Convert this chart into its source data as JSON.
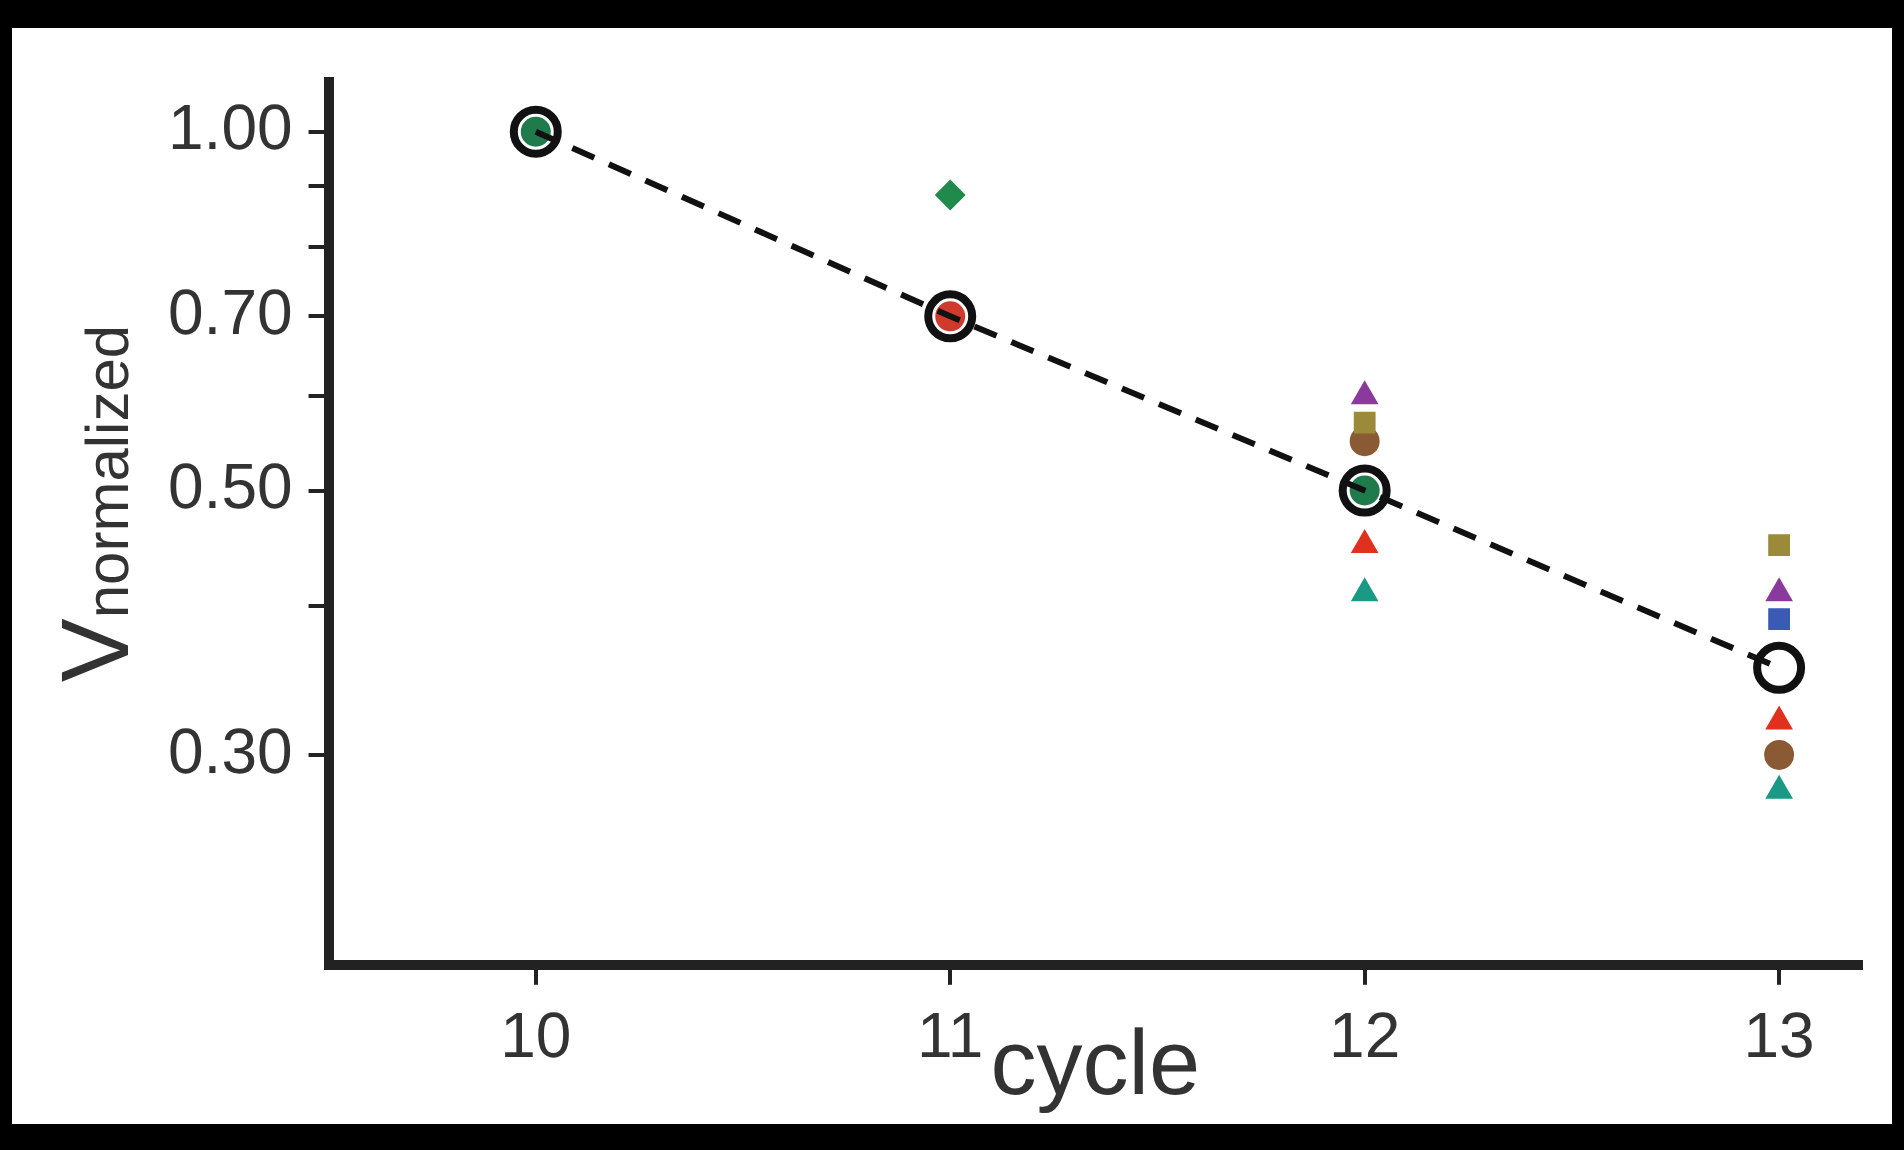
{
  "chart_data": {
    "type": "scatter",
    "xlabel": "cycle",
    "ylabel": "V$_{normalized}$",
    "log": "y",
    "grid": false,
    "legend": false,
    "xlim": [
      9.5,
      13.2
    ],
    "xticks": [
      10,
      11,
      12,
      13
    ],
    "ylim": [
      0.2,
      1.1
    ],
    "yticks": [
      {
        "value": 0.3,
        "label": "0.30"
      },
      {
        "value": 0.4,
        "label": null
      },
      {
        "value": 0.5,
        "label": "0.50"
      },
      {
        "value": 0.6,
        "label": null
      },
      {
        "value": 0.7,
        "label": "0.70"
      },
      {
        "value": 0.8,
        "label": null
      },
      {
        "value": 0.9,
        "label": null
      },
      {
        "value": 1.0,
        "label": "1.00"
      }
    ],
    "series": [
      {
        "type": "scatter",
        "marker": "circle",
        "color": "#1f7a4c",
        "x": [
          10,
          12
        ],
        "values": [
          1.0,
          0.5
        ]
      },
      {
        "type": "scatter",
        "marker": "circle",
        "color": "#d03a2c",
        "x": [
          11
        ],
        "values": [
          0.7
        ]
      },
      {
        "type": "scatter",
        "marker": "diamond",
        "color": "#1f8a4c",
        "x": [
          11
        ],
        "values": [
          0.885
        ]
      },
      {
        "type": "scatter",
        "marker": "triangle",
        "color": "#8a3a9c",
        "x": [
          12,
          13
        ],
        "values": [
          0.6,
          0.41
        ]
      },
      {
        "type": "scatter",
        "marker": "square",
        "color": "#9a8a3a",
        "x": [
          12,
          13
        ],
        "values": [
          0.57,
          0.45
        ]
      },
      {
        "type": "scatter",
        "marker": "circle",
        "color": "#8a5a34",
        "x": [
          12,
          13
        ],
        "values": [
          0.55,
          0.3
        ]
      },
      {
        "type": "scatter",
        "marker": "triangle",
        "color": "#e0301e",
        "x": [
          12,
          13
        ],
        "values": [
          0.45,
          0.32
        ]
      },
      {
        "type": "scatter",
        "marker": "triangle",
        "color": "#1a9a86",
        "x": [
          12,
          13
        ],
        "values": [
          0.41,
          0.28
        ]
      },
      {
        "type": "scatter",
        "marker": "square",
        "color": "#3a5ab4",
        "x": [
          13
        ],
        "values": [
          0.39
        ]
      },
      {
        "type": "line",
        "marker": "circle",
        "line_style": "dashed",
        "color": "#111111",
        "x": [
          10,
          11,
          12,
          13
        ],
        "values": [
          1.0,
          0.7,
          0.5,
          0.355
        ]
      }
    ]
  }
}
